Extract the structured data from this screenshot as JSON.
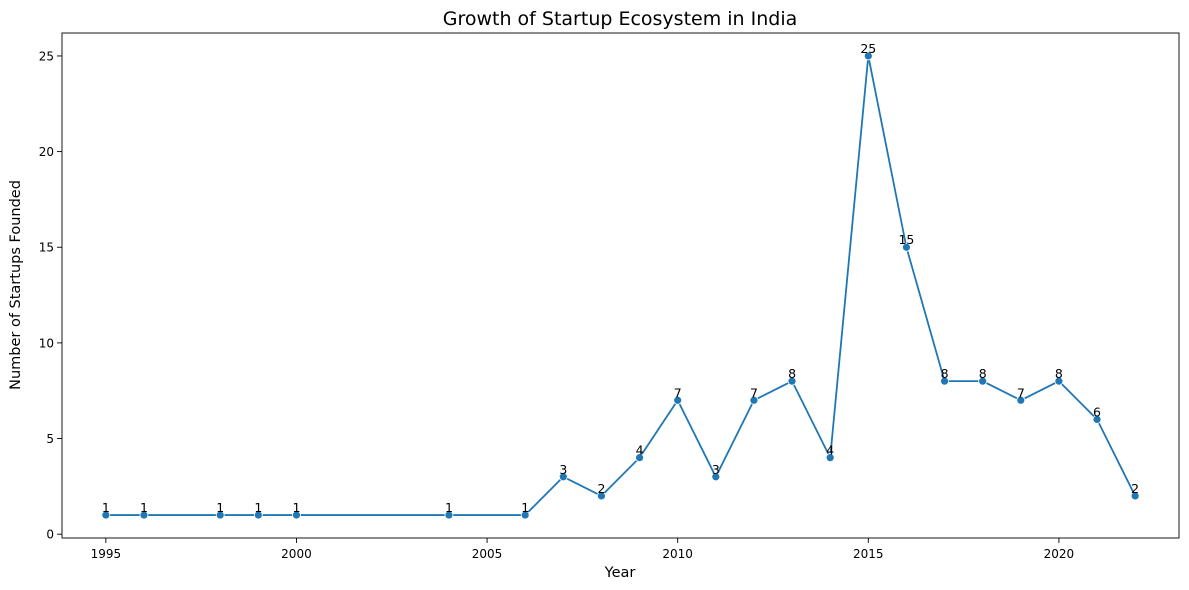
{
  "chart_data": {
    "type": "line",
    "title": "Growth of Startup Ecosystem in India",
    "xlabel": "Year",
    "ylabel": "Number of Startups Founded",
    "x": [
      1995,
      1996,
      1998,
      1999,
      2000,
      2004,
      2006,
      2007,
      2008,
      2009,
      2010,
      2011,
      2012,
      2013,
      2014,
      2015,
      2016,
      2017,
      2018,
      2019,
      2020,
      2021,
      2022
    ],
    "values": [
      1,
      1,
      1,
      1,
      1,
      1,
      1,
      3,
      2,
      4,
      7,
      3,
      7,
      8,
      4,
      25,
      15,
      8,
      8,
      7,
      8,
      6,
      2
    ],
    "xlim": [
      1993.85,
      2023.15
    ],
    "ylim": [
      -0.2,
      26.2
    ],
    "xticks": [
      1995,
      2000,
      2005,
      2010,
      2015,
      2020
    ],
    "yticks": [
      0,
      5,
      10,
      15,
      20,
      25
    ],
    "series_color": "#1f77b4",
    "grid": false,
    "legend": "none"
  }
}
